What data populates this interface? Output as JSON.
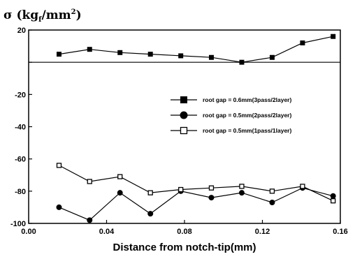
{
  "chart_data": {
    "type": "line",
    "title": "",
    "ylabel_parts": [
      "σ (kg",
      "f",
      "/mm",
      "2",
      ")"
    ],
    "xlabel": "Distance from notch-tip(mm)",
    "xlim": [
      0.0,
      0.16
    ],
    "ylim": [
      -100,
      20
    ],
    "x_ticks": [
      0.0,
      0.04,
      0.08,
      0.12,
      0.16
    ],
    "x_tick_labels": [
      "0.00",
      "0.04",
      "0.08",
      "0.12",
      "0.16"
    ],
    "y_ticks": [
      20,
      0,
      -20,
      -40,
      -60,
      -80,
      -100
    ],
    "y_tick_labels": [
      "20",
      "",
      "-20",
      "-40",
      "-60",
      "-80",
      "-100"
    ],
    "zero_line": true,
    "grid": false,
    "legend_position": "right-middle",
    "series": [
      {
        "name": "root gap = 0.6mm(3pass/2layer)",
        "marker": "filled-square",
        "x": [
          0.0156,
          0.0313,
          0.0469,
          0.0625,
          0.0781,
          0.0938,
          0.1094,
          0.125,
          0.1406,
          0.1563
        ],
        "y": [
          5,
          8,
          6,
          5,
          4,
          3,
          0,
          3,
          12,
          16
        ]
      },
      {
        "name": "root gap = 0.5mm(2pass/2layer)",
        "marker": "filled-circle",
        "x": [
          0.0156,
          0.0313,
          0.0469,
          0.0625,
          0.0781,
          0.0938,
          0.1094,
          0.125,
          0.1406,
          0.1563
        ],
        "y": [
          -90,
          -98,
          -81,
          -94,
          -80,
          -84,
          -81,
          -87,
          -78,
          -83
        ]
      },
      {
        "name": "root gap = 0.5mm(1pass/1layer)",
        "marker": "open-square",
        "x": [
          0.0156,
          0.0313,
          0.0469,
          0.0625,
          0.0781,
          0.0938,
          0.1094,
          0.125,
          0.1406,
          0.1563
        ],
        "y": [
          -64,
          -74,
          -71,
          -81,
          -79,
          -78,
          -77,
          -80,
          -77,
          -86
        ]
      }
    ]
  }
}
